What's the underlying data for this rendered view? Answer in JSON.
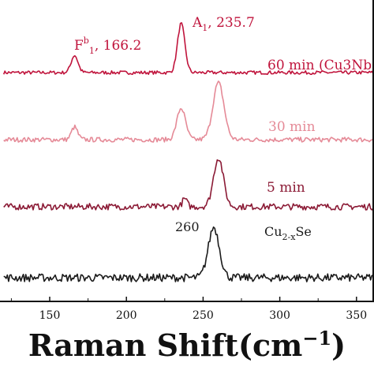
{
  "chart_data": {
    "type": "line",
    "xlabel_main": "Raman Shift(cm",
    "xlabel_sup": "−1",
    "xlabel_close": ")",
    "xlim": [
      120,
      363
    ],
    "xticks": [
      150,
      200,
      250,
      300,
      350
    ],
    "grid": false,
    "series": [
      {
        "name": "60 min (Cu3NbSe",
        "color": "#c0143c",
        "peaks": [
          {
            "x": 166.2,
            "h": 22,
            "w": 2.2
          },
          {
            "x": 235.7,
            "h": 62,
            "w": 2.4
          }
        ],
        "noise": 2.2
      },
      {
        "name": "30 min",
        "color": "#e58a97",
        "peaks": [
          {
            "x": 166.2,
            "h": 16,
            "w": 2.0
          },
          {
            "x": 235.7,
            "h": 40,
            "w": 2.8
          },
          {
            "x": 260,
            "h": 72,
            "w": 3.6
          }
        ],
        "noise": 3.0
      },
      {
        "name": "5 min",
        "color": "#8b1a35",
        "peaks": [
          {
            "x": 238,
            "h": 10,
            "w": 1.5
          },
          {
            "x": 260,
            "h": 62,
            "w": 3.2
          }
        ],
        "noise": 4.0
      },
      {
        "name": "Cu2-xSe",
        "color": "#1a1a1a",
        "peaks": [
          {
            "x": 257,
            "h": 64,
            "w": 3.6
          }
        ],
        "noise": 5.0
      }
    ],
    "annotations": [
      {
        "id": "fb1",
        "base": "F",
        "sup": "b",
        "sub": "1",
        "rest": ", 166.2",
        "color": "#c0143c"
      },
      {
        "id": "a1",
        "base": "A",
        "sup": "",
        "sub": "1",
        "rest": ", 235.7",
        "color": "#c0143c"
      },
      {
        "id": "p260",
        "base": "260",
        "sup": "",
        "sub": "",
        "rest": "",
        "color": "#1a1a1a"
      }
    ]
  }
}
